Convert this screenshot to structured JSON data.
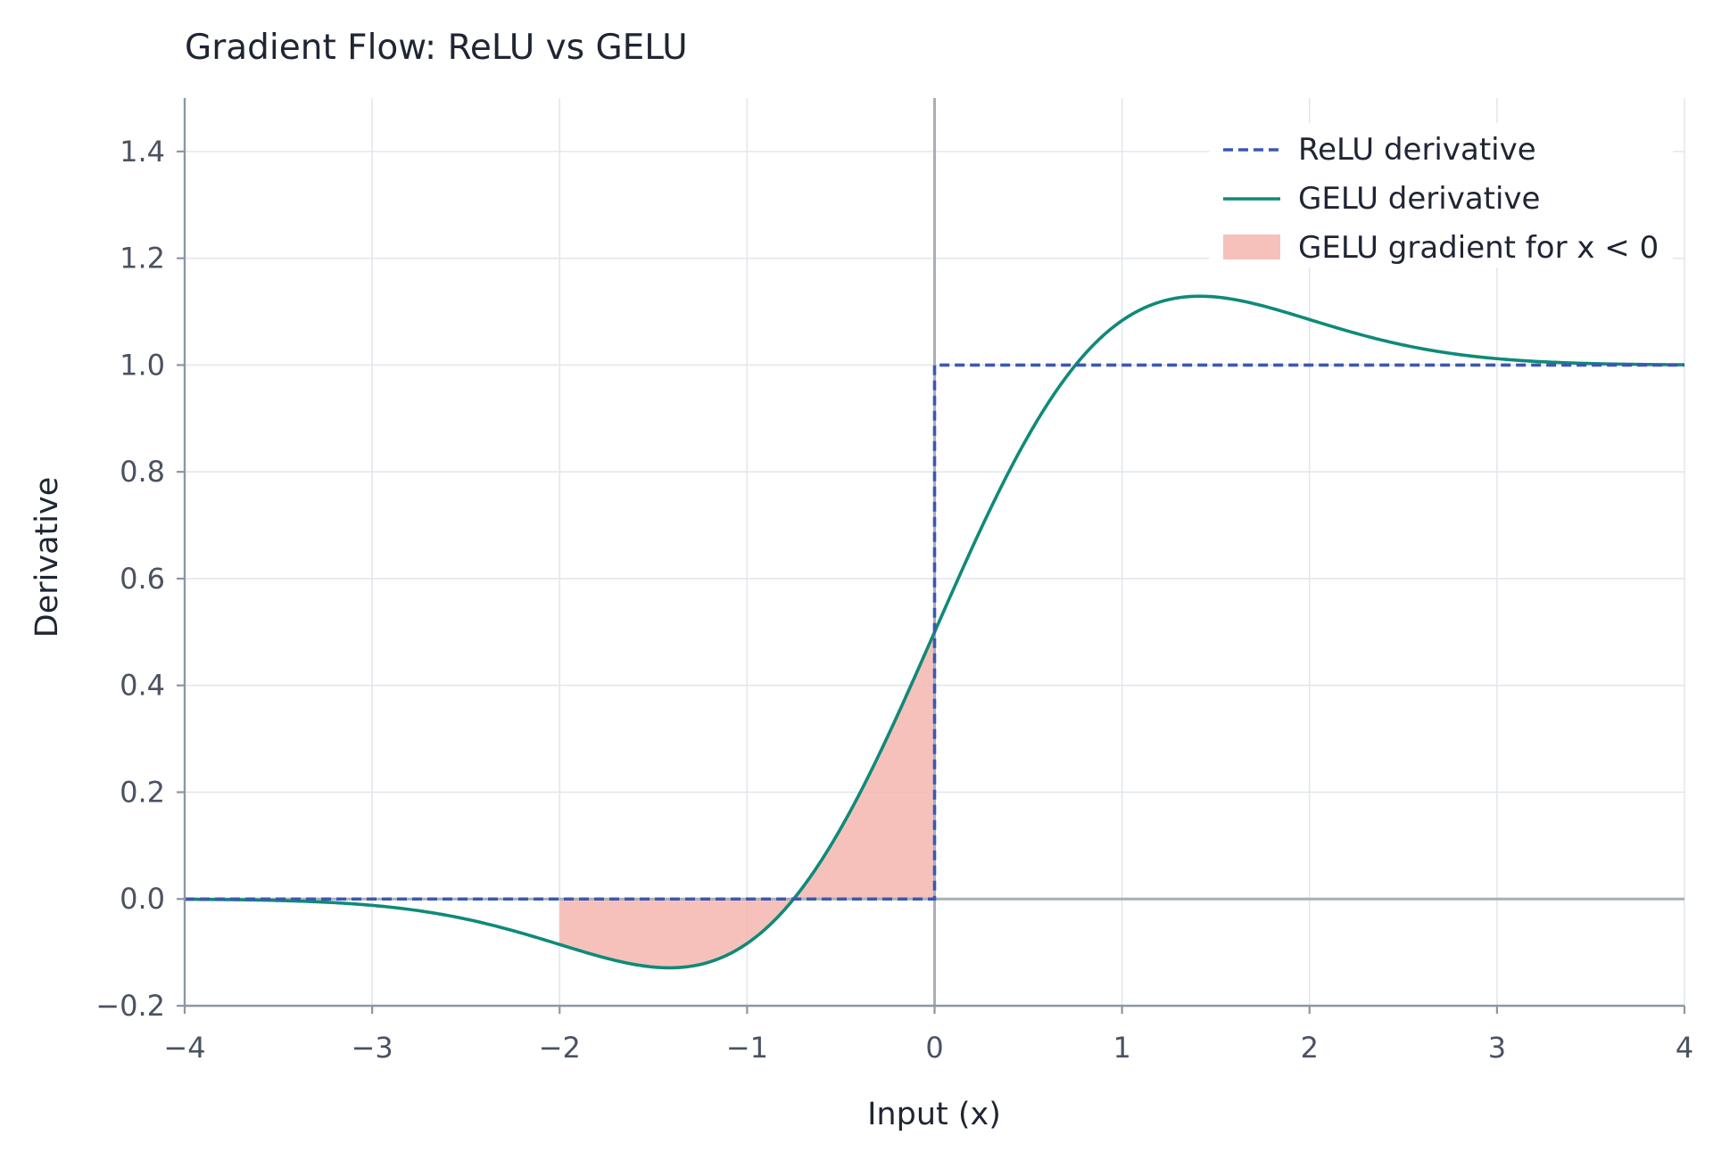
{
  "chart_data": {
    "type": "line",
    "title": "Gradient Flow: ReLU vs GELU",
    "xlabel": "Input (x)",
    "ylabel": "Derivative",
    "xlim": [
      -4,
      4
    ],
    "ylim": [
      -0.2,
      1.5
    ],
    "x_ticks": [
      -4,
      -3,
      -2,
      -1,
      0,
      1,
      2,
      3,
      4
    ],
    "x_tick_labels": [
      "−4",
      "−3",
      "−2",
      "−1",
      "0",
      "1",
      "2",
      "3",
      "4"
    ],
    "y_ticks": [
      -0.2,
      0.0,
      0.2,
      0.4,
      0.6,
      0.8,
      1.0,
      1.2,
      1.4
    ],
    "y_tick_labels": [
      "−0.2",
      "0.0",
      "0.2",
      "0.4",
      "0.6",
      "0.8",
      "1.0",
      "1.2",
      "1.4"
    ],
    "grid": true,
    "legend_position": "top-right",
    "series": [
      {
        "name": "ReLU derivative",
        "style": "dashed",
        "color": "#3b57b5",
        "x": [
          -4,
          0,
          0,
          4
        ],
        "y": [
          0,
          0,
          1,
          1
        ]
      },
      {
        "name": "GELU derivative",
        "style": "solid",
        "color": "#0f8a78",
        "x": [
          -4,
          -3.5,
          -3,
          -2.5,
          -2,
          -1.75,
          -1.5,
          -1.414,
          -1.25,
          -1,
          -0.75,
          -0.5,
          -0.25,
          0,
          0.25,
          0.5,
          0.75,
          1,
          1.25,
          1.414,
          1.5,
          1.75,
          2,
          2.5,
          3,
          3.5,
          4
        ],
        "y": [
          -0.0005,
          -0.0029,
          -0.0119,
          -0.0414,
          -0.0854,
          -0.1107,
          -0.1272,
          -0.1284,
          -0.1202,
          -0.0833,
          -0.0007,
          0.1325,
          0.3075,
          0.5,
          0.6925,
          0.8675,
          1.0007,
          1.0833,
          1.1202,
          1.1284,
          1.1272,
          1.1107,
          1.0854,
          1.0414,
          1.0119,
          1.0029,
          1.0005
        ]
      }
    ],
    "shaded_region": {
      "name": "GELU gradient for x < 0",
      "color": "#f4b6af",
      "x_range": [
        -2,
        0
      ],
      "between": [
        "GELU derivative",
        0
      ]
    },
    "reference_lines": {
      "horizontal_y": 0,
      "vertical_x": 0,
      "color": "#a9aeb6"
    }
  }
}
